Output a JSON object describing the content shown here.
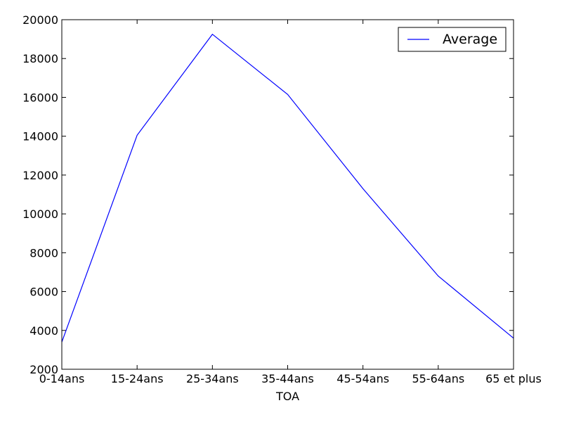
{
  "chart_data": {
    "type": "line",
    "categories": [
      "0-14ans",
      "15-24ans",
      "25-34ans",
      "35-44ans",
      "45-54ans",
      "55-64ans",
      "65 et plus"
    ],
    "series": [
      {
        "name": "Average",
        "color": "#0000ff",
        "values": [
          3400,
          14050,
          19250,
          16150,
          11300,
          6800,
          3600
        ]
      }
    ],
    "xlabel": "TOA",
    "ylabel": "",
    "title": "",
    "ylim": [
      2000,
      20000
    ],
    "yticks": [
      2000,
      4000,
      6000,
      8000,
      10000,
      12000,
      14000,
      16000,
      18000,
      20000
    ],
    "grid": false,
    "legend_position": "top-right"
  }
}
